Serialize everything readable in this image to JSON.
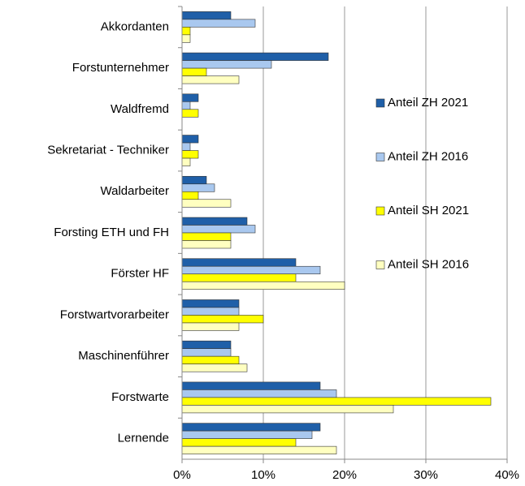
{
  "chart_data": {
    "type": "hbar",
    "categories": [
      "Akkordanten",
      "Forstunternehmer",
      "Waldfremd",
      "Sekretariat - Techniker",
      "Waldarbeiter",
      "Forsting ETH und FH",
      "Förster HF",
      "Forstwartvorarbeiter",
      "Maschinenführer",
      "Forstwarte",
      "Lernende"
    ],
    "series": [
      {
        "name": "Anteil ZH 2021",
        "color": "#1f5fa8",
        "values": [
          6,
          18,
          2,
          2,
          3,
          8,
          14,
          7,
          6,
          17,
          17
        ]
      },
      {
        "name": "Anteil ZH 2016",
        "color": "#a9c8ef",
        "values": [
          9,
          11,
          1,
          1,
          4,
          9,
          17,
          7,
          6,
          19,
          16
        ]
      },
      {
        "name": "Anteil SH 2021",
        "color": "#ffff00",
        "values": [
          1,
          3,
          2,
          2,
          2,
          6,
          14,
          10,
          7,
          38,
          14
        ]
      },
      {
        "name": "Anteil SH 2016",
        "color": "#ffffc0",
        "values": [
          1,
          7,
          0,
          1,
          6,
          6,
          20,
          7,
          8,
          26,
          19
        ]
      }
    ],
    "xlim": [
      0,
      40
    ],
    "xticks": [
      {
        "value": 0,
        "label": "0%"
      },
      {
        "value": 10,
        "label": "10%"
      },
      {
        "value": 20,
        "label": "20%"
      },
      {
        "value": 30,
        "label": "30%"
      },
      {
        "value": 40,
        "label": "40%"
      }
    ],
    "grid": true,
    "legend": "right"
  }
}
